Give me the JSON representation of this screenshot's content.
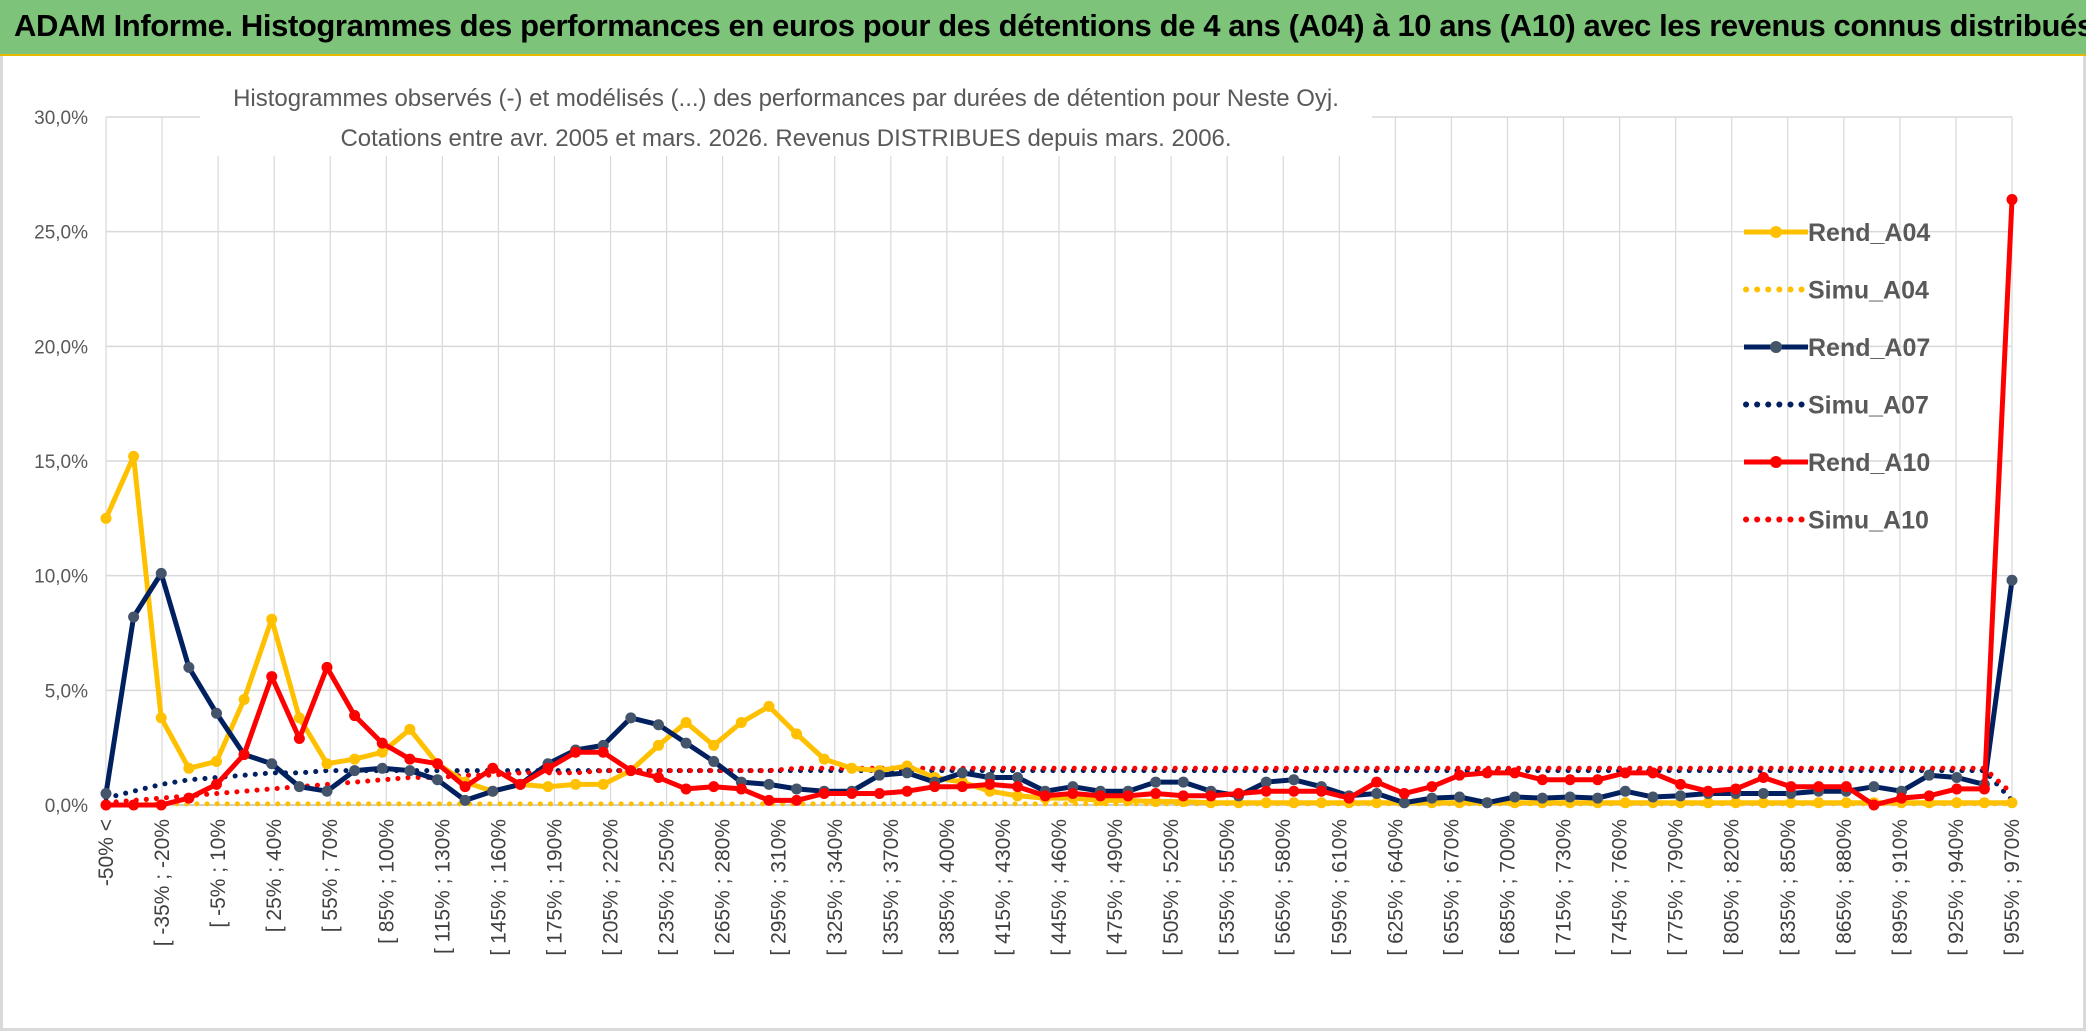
{
  "banner": {
    "title": "ADAM Informe. Histogrammes des performances en euros pour des détentions de 4 ans (A04) à 10 ans (A10) avec les revenus connus distribués"
  },
  "colors": {
    "banner_bg": "#7dc47a",
    "A04": "#ffc000",
    "A07": "#002060",
    "A10": "#ff0000",
    "A07_marker": "#44546a",
    "grid": "#d9d9d9"
  },
  "chart_data": {
    "type": "line",
    "title": "Histogrammes observés (-) et modélisés (...) des performances par durées de détention pour Neste Oyj.",
    "subtitle": "Cotations entre avr. 2005 et mars. 2026. Revenus DISTRIBUES depuis mars. 2006.",
    "ylim": [
      0,
      30
    ],
    "yticks": [
      "30,0%",
      "25,0%",
      "20,0%",
      "15,0%",
      "10,0%",
      "5,0%",
      "0,0%"
    ],
    "ytick_values": [
      30,
      25,
      20,
      15,
      10,
      5,
      0
    ],
    "grid": true,
    "legend_position": "right",
    "xtick_labels": [
      "-50% <",
      "[ -35% ; -20%",
      "[ -5% ; 10%",
      "[ 25% ; 40%",
      "[ 55% ; 70%",
      "[ 85% ; 100%",
      "[ 115% ; 130%",
      "[ 145% ; 160%",
      "[ 175% ; 190%",
      "[ 205% ; 220%",
      "[ 235% ; 250%",
      "[ 265% ; 280%",
      "[ 295% ; 310%",
      "[ 325% ; 340%",
      "[ 355% ; 370%",
      "[ 385% ; 400%",
      "[ 415% ; 430%",
      "[ 445% ; 460%",
      "[ 475% ; 490%",
      "[ 505% ; 520%",
      "[ 535% ; 550%",
      "[ 565% ; 580%",
      "[ 595% ; 610%",
      "[ 625% ; 640%",
      "[ 655% ; 670%",
      "[ 685% ; 700%",
      "[ 715% ; 730%",
      "[ 745% ; 760%",
      "[ 775% ; 790%",
      "[ 805% ; 820%",
      "[ 835% ; 850%",
      "[ 865% ; 880%",
      "[ 895% ; 910%",
      "[ 925% ; 940%",
      "[ 955% ; 970%"
    ],
    "series": [
      {
        "name": "Rend_A04",
        "style": "solid",
        "color": "#ffc000",
        "values": [
          12.5,
          15.2,
          3.8,
          1.6,
          1.9,
          4.6,
          8.1,
          3.8,
          1.8,
          2.0,
          2.3,
          3.3,
          1.8,
          1.0,
          0.6,
          0.9,
          0.8,
          0.9,
          0.9,
          1.5,
          2.6,
          3.6,
          2.6,
          3.6,
          4.3,
          3.1,
          2.0,
          1.6,
          1.5,
          1.7,
          1.2,
          1.0,
          0.6,
          0.4,
          0.3,
          0.3,
          0.2,
          0.2,
          0.15,
          0.15,
          0.1,
          0.1,
          0.1,
          0.1,
          0.1,
          0.1,
          0.1,
          0.1,
          0.1,
          0.1,
          0.1,
          0.1,
          0.1,
          0.1,
          0.1,
          0.1,
          0.1,
          0.1,
          0.1,
          0.1,
          0.1,
          0.1,
          0.1,
          0.1,
          0.1,
          0.1,
          0.1,
          0.1,
          0.1,
          0.1
        ]
      },
      {
        "name": "Simu_A04",
        "style": "dotted",
        "color": "#ffc000",
        "values": [
          0.05,
          0.05,
          0.05,
          0.05,
          0.05,
          0.05,
          0.05,
          0.05,
          0.05,
          0.05,
          0.05,
          0.05,
          0.05,
          0.05,
          0.05,
          0.05,
          0.05,
          0.05,
          0.05,
          0.05,
          0.05,
          0.05,
          0.05,
          0.05,
          0.05,
          0.05,
          0.05,
          0.05,
          0.05,
          0.05,
          0.05,
          0.05,
          0.05,
          0.05,
          0.05,
          0.05,
          0.05,
          0.05,
          0.05,
          0.05,
          0.05,
          0.05,
          0.05,
          0.05,
          0.05,
          0.05,
          0.05,
          0.05,
          0.05,
          0.05,
          0.05,
          0.05,
          0.05,
          0.05,
          0.05,
          0.05,
          0.05,
          0.05,
          0.05,
          0.05,
          0.05,
          0.05,
          0.05,
          0.05,
          0.05,
          0.05,
          0.05,
          0.05,
          0.05,
          0.05
        ]
      },
      {
        "name": "Rend_A07",
        "style": "solid",
        "color": "#002060",
        "values": [
          0.5,
          8.2,
          10.1,
          6.0,
          4.0,
          2.2,
          1.8,
          0.8,
          0.6,
          1.5,
          1.6,
          1.5,
          1.1,
          0.2,
          0.6,
          0.9,
          1.8,
          2.4,
          2.6,
          3.8,
          3.5,
          2.7,
          1.9,
          1.0,
          0.9,
          0.7,
          0.6,
          0.6,
          1.3,
          1.4,
          1.0,
          1.4,
          1.2,
          1.2,
          0.6,
          0.8,
          0.6,
          0.6,
          1.0,
          1.0,
          0.6,
          0.4,
          1.0,
          1.1,
          0.8,
          0.4,
          0.5,
          0.1,
          0.3,
          0.35,
          0.1,
          0.35,
          0.3,
          0.35,
          0.3,
          0.6,
          0.35,
          0.4,
          0.5,
          0.5,
          0.5,
          0.5,
          0.6,
          0.6,
          0.8,
          0.6,
          1.3,
          1.2,
          0.9,
          9.8
        ]
      },
      {
        "name": "Simu_A07",
        "style": "dotted",
        "color": "#002060",
        "values": [
          0.3,
          0.6,
          0.9,
          1.1,
          1.2,
          1.3,
          1.4,
          1.4,
          1.5,
          1.5,
          1.5,
          1.5,
          1.5,
          1.5,
          1.5,
          1.5,
          1.5,
          1.5,
          1.5,
          1.5,
          1.5,
          1.5,
          1.5,
          1.5,
          1.5,
          1.5,
          1.5,
          1.5,
          1.5,
          1.5,
          1.5,
          1.5,
          1.5,
          1.5,
          1.5,
          1.5,
          1.5,
          1.5,
          1.5,
          1.5,
          1.5,
          1.5,
          1.5,
          1.5,
          1.5,
          1.5,
          1.5,
          1.5,
          1.5,
          1.5,
          1.5,
          1.5,
          1.5,
          1.5,
          1.5,
          1.5,
          1.5,
          1.5,
          1.5,
          1.5,
          1.5,
          1.5,
          1.5,
          1.5,
          1.5,
          1.5,
          1.5,
          1.5,
          1.5,
          0.2
        ]
      },
      {
        "name": "Rend_A10",
        "style": "solid",
        "color": "#ff0000",
        "values": [
          0.0,
          0.0,
          0.0,
          0.3,
          0.9,
          2.2,
          5.6,
          2.9,
          6.0,
          3.9,
          2.7,
          2.0,
          1.8,
          0.8,
          1.6,
          0.9,
          1.6,
          2.3,
          2.3,
          1.5,
          1.2,
          0.7,
          0.8,
          0.7,
          0.2,
          0.2,
          0.5,
          0.5,
          0.5,
          0.6,
          0.8,
          0.8,
          0.9,
          0.8,
          0.4,
          0.5,
          0.4,
          0.4,
          0.5,
          0.4,
          0.4,
          0.5,
          0.6,
          0.6,
          0.6,
          0.3,
          1.0,
          0.5,
          0.8,
          1.3,
          1.4,
          1.4,
          1.1,
          1.1,
          1.1,
          1.4,
          1.4,
          0.9,
          0.6,
          0.7,
          1.2,
          0.8,
          0.8,
          0.8,
          0.0,
          0.3,
          0.4,
          0.7,
          0.7,
          26.4
        ]
      },
      {
        "name": "Simu_A10",
        "style": "dotted",
        "color": "#ff0000",
        "values": [
          0.1,
          0.2,
          0.3,
          0.4,
          0.5,
          0.6,
          0.7,
          0.8,
          0.9,
          1.0,
          1.1,
          1.2,
          1.2,
          1.3,
          1.3,
          1.4,
          1.4,
          1.4,
          1.5,
          1.5,
          1.5,
          1.5,
          1.5,
          1.5,
          1.5,
          1.6,
          1.6,
          1.6,
          1.6,
          1.6,
          1.6,
          1.6,
          1.6,
          1.6,
          1.6,
          1.6,
          1.6,
          1.6,
          1.6,
          1.6,
          1.6,
          1.6,
          1.6,
          1.6,
          1.6,
          1.6,
          1.6,
          1.6,
          1.6,
          1.6,
          1.6,
          1.6,
          1.6,
          1.6,
          1.6,
          1.6,
          1.6,
          1.6,
          1.6,
          1.6,
          1.6,
          1.6,
          1.6,
          1.6,
          1.6,
          1.6,
          1.6,
          1.6,
          1.6,
          0.5
        ]
      }
    ]
  }
}
